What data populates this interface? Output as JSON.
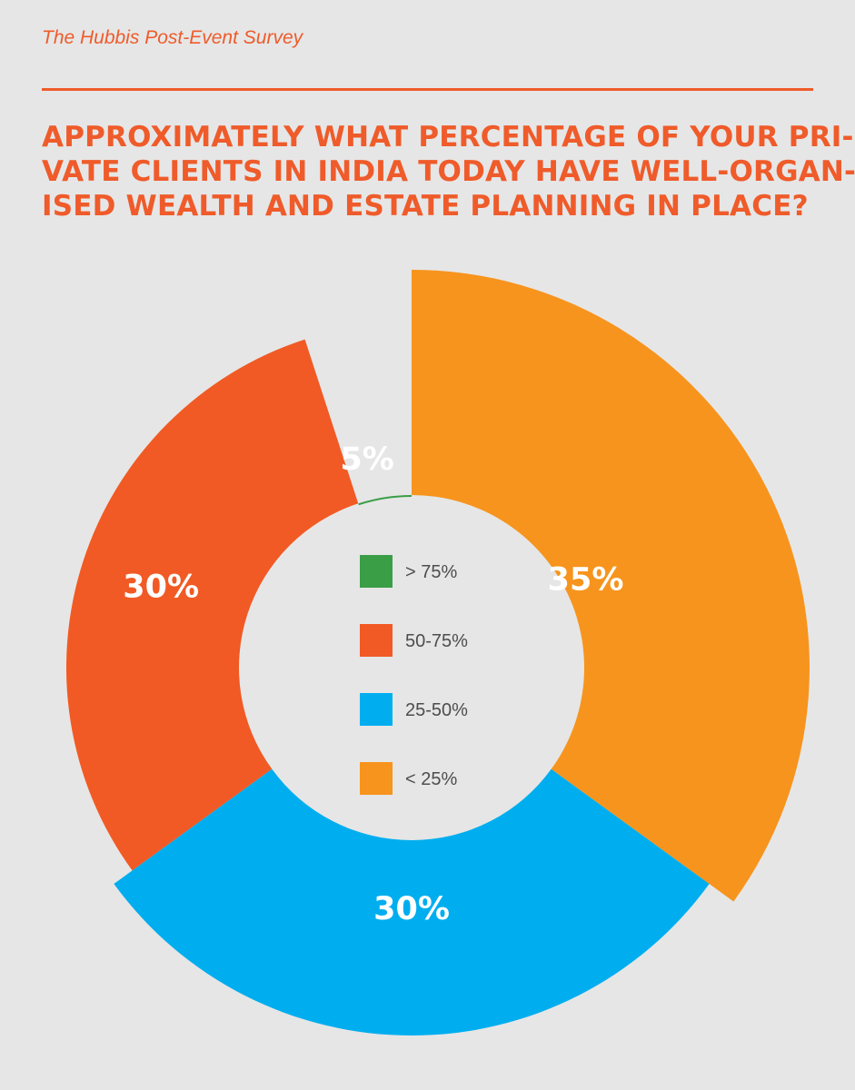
{
  "header": {
    "label": "The Hubbis Post-Event Survey"
  },
  "question": {
    "lines": [
      "APPROXIMATELY WHAT PERCENTAGE OF YOUR PRI-",
      "VATE CLIENTS IN INDIA TODAY HAVE WELL-ORGAN-",
      "ISED WEALTH AND ESTATE PLANNING IN PLACE?"
    ]
  },
  "chart_data": {
    "type": "pie",
    "title": "APPROXIMATELY WHAT PERCENTAGE OF YOUR PRIVATE CLIENTS IN INDIA TODAY HAVE WELL-ORGANISED WEALTH AND ESTATE PLANNING IN PLACE?",
    "categories": [
      "> 75%",
      "50-75%",
      "25-50%",
      "< 25%"
    ],
    "values": [
      5,
      30,
      30,
      35
    ],
    "data_labels": [
      "5%",
      "30%",
      "30%",
      "35%"
    ],
    "colors": [
      "#3a9e47",
      "#f15a24",
      "#00aeef",
      "#f7941d"
    ],
    "legend_position": "center",
    "hole": true
  }
}
